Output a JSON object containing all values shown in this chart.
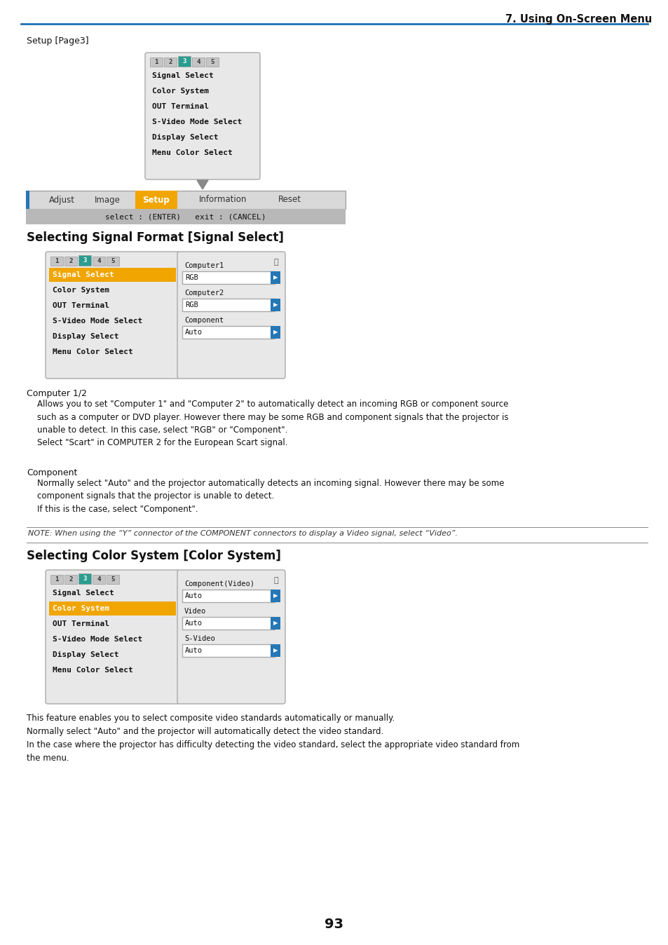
{
  "page_title": "7. Using On-Screen Menu",
  "title_color": "#1a1a1a",
  "header_line_color": "#1e6eb5",
  "background_color": "#ffffff",
  "section_label": "Setup [Page3]",
  "tab_numbers": [
    "1",
    "2",
    "3",
    "4",
    "5"
  ],
  "tab_active": 2,
  "tab_active_color": "#2a9d8f",
  "menu_items_main": [
    "Signal Select",
    "Color System",
    "OUT Terminal",
    "S-Video Mode Select",
    "Display Select",
    "Menu Color Select"
  ],
  "menu_bg": "#e8e8e8",
  "menu_border": "#aaaaaa",
  "bottom_bar_items": [
    "Adjust",
    "Image",
    "Setup",
    "Information",
    "Reset"
  ],
  "bottom_bar_active": "Setup",
  "bottom_bar_active_color": "#f0a500",
  "select_bar_text": "select : (ENTER)   exit : (CANCEL)",
  "section1_title": "Selecting Signal Format [Signal Select]",
  "signal_menu_active": "Signal Select",
  "signal_menu_active_color": "#f0a500",
  "signal_right_labels": [
    "Computer1",
    "Computer2",
    "Component"
  ],
  "signal_right_values": [
    "RGB",
    "RGB",
    "Auto"
  ],
  "signal_dropdown_bg": "#ffffff",
  "signal_dropdown_arrow_bg": "#2577b5",
  "computer_para_title": "Computer 1/2",
  "component_para_title": "Component",
  "note_text": "NOTE: When using the “Y” connector of the COMPONENT connectors to display a Video signal, select “Video”.",
  "section2_title": "Selecting Color System [Color System]",
  "color_menu_active": "Color System",
  "color_right_labels": [
    "Component(Video)",
    "Video",
    "S-Video"
  ],
  "color_right_values": [
    "Auto",
    "Auto",
    "Auto"
  ],
  "page_number": "93"
}
